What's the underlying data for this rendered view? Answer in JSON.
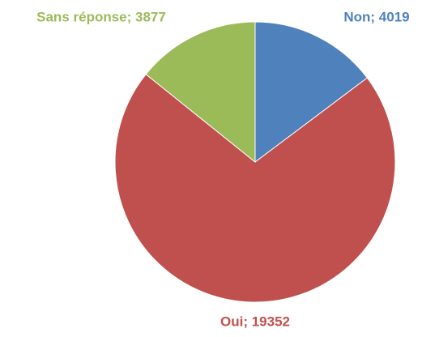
{
  "chart_data": {
    "type": "pie",
    "values": [
      4019,
      19352,
      3877
    ],
    "value_labels": [
      "Non; 4019",
      "Oui; 19352",
      "Sans réponse; 3877"
    ],
    "colors": [
      "#4f81bd",
      "#c0504d",
      "#9bbb59"
    ]
  }
}
